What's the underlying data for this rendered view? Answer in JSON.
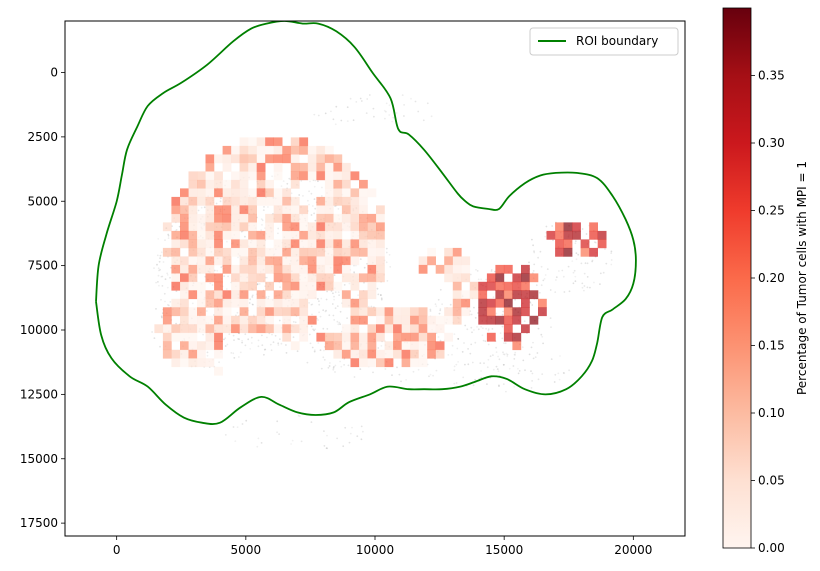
{
  "chart_data": {
    "type": "heatmap",
    "title": "",
    "xlabel": "",
    "ylabel": "",
    "xlim": [
      -2000,
      22000
    ],
    "ylim": [
      18000,
      -2000
    ],
    "y_inverted": true,
    "grid": false,
    "x_ticks": [
      0,
      5000,
      10000,
      15000,
      20000
    ],
    "x_tick_labels": [
      "0",
      "5000",
      "10000",
      "15000",
      "20000"
    ],
    "y_ticks": [
      0,
      2500,
      5000,
      7500,
      10000,
      12500,
      15000,
      17500
    ],
    "y_tick_labels": [
      "0",
      "2500",
      "5000",
      "7500",
      "10000",
      "12500",
      "15000",
      "17500"
    ],
    "legend": {
      "placement": "top-right",
      "entries": [
        {
          "label": "ROI boundary",
          "color": "#008000"
        }
      ]
    },
    "colorbar": {
      "label": "Percentage of Tumor cells with MPI = 1",
      "colormap": "Reds",
      "range": [
        0,
        0.4
      ],
      "ticks": [
        0.0,
        0.05,
        0.1,
        0.15,
        0.2,
        0.25,
        0.3,
        0.35
      ],
      "tick_labels": [
        "0.00",
        "0.05",
        "0.10",
        "0.15",
        "0.20",
        "0.25",
        "0.30",
        "0.35"
      ]
    },
    "roi_boundary": {
      "name": "ROI boundary",
      "color": "#008000",
      "x": [
        -800,
        -700,
        -400,
        0,
        200,
        400,
        800,
        1200,
        1800,
        2500,
        3500,
        4500,
        5200,
        5800,
        6500,
        7200,
        7800,
        8500,
        9200,
        9900,
        10600,
        10900,
        11300,
        11900,
        12600,
        13200,
        13500,
        13800,
        14400,
        14800,
        15200,
        15800,
        16400,
        17000,
        17800,
        18600,
        19200,
        19700,
        20000,
        20100,
        20000,
        19700,
        19200,
        18800,
        18600,
        18400,
        18000,
        17400,
        16600,
        15800,
        15100,
        14500,
        13900,
        13300,
        12600,
        11900,
        11300,
        10500,
        9800,
        9000,
        8400,
        7700,
        7000,
        6300,
        5600,
        4800,
        4000,
        3300,
        2600,
        1900,
        1200,
        500,
        -200,
        -600,
        -800
      ],
      "y": [
        8900,
        7500,
        6300,
        5000,
        4000,
        3000,
        2100,
        1300,
        800,
        400,
        -300,
        -1200,
        -1700,
        -1900,
        -2000,
        -1900,
        -1900,
        -1600,
        -1000,
        0,
        1000,
        2200,
        2400,
        3000,
        3900,
        4700,
        5000,
        5200,
        5300,
        5300,
        4800,
        4300,
        4000,
        3900,
        3900,
        4100,
        4800,
        5700,
        6500,
        7300,
        8200,
        8800,
        9200,
        9500,
        10500,
        11200,
        11800,
        12300,
        12500,
        12300,
        11900,
        11800,
        12000,
        12200,
        12300,
        12300,
        12300,
        12200,
        12500,
        12800,
        13200,
        13300,
        13200,
        12900,
        12600,
        13000,
        13600,
        13600,
        13400,
        12900,
        12200,
        11800,
        11100,
        10200,
        8900
      ]
    }
  }
}
